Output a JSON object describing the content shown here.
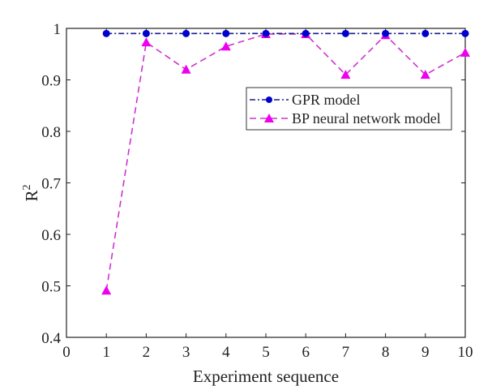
{
  "chart_data": {
    "type": "line",
    "title": "",
    "xlabel": "Experiment sequence",
    "ylabel": "R",
    "ylabel_superscript": "2",
    "xlim": [
      0,
      10
    ],
    "ylim": [
      0.4,
      1
    ],
    "xticks": [
      "0",
      "1",
      "2",
      "3",
      "4",
      "5",
      "6",
      "7",
      "8",
      "9",
      "10"
    ],
    "yticks": [
      "0.4",
      "0.5",
      "0.6",
      "0.7",
      "0.8",
      "0.9",
      "1"
    ],
    "grid": false,
    "legend_position": "center-right",
    "x": [
      1,
      2,
      3,
      4,
      5,
      6,
      7,
      8,
      9,
      10
    ],
    "series": [
      {
        "name": "GPR model",
        "color": "#0000cc",
        "line_color": "#1a1a8c",
        "marker": "circle",
        "line_style": "dash-dot",
        "values": [
          0.99,
          0.99,
          0.99,
          0.99,
          0.99,
          0.99,
          0.99,
          0.99,
          0.99,
          0.99
        ]
      },
      {
        "name": "BP neural network model",
        "color": "#ee00ee",
        "line_color": "#cc33cc",
        "marker": "triangle",
        "line_style": "dashed",
        "values": [
          0.491,
          0.973,
          0.92,
          0.965,
          0.989,
          0.989,
          0.91,
          0.987,
          0.91,
          0.953
        ]
      }
    ]
  }
}
